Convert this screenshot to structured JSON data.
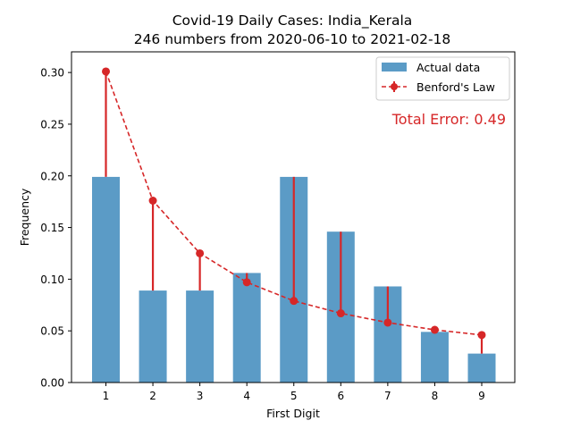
{
  "chart_data": {
    "type": "bar",
    "title": "Covid-19 Daily Cases: India_Kerala",
    "subtitle": "246 numbers from 2020-06-10 to 2021-02-18",
    "xlabel": "First Digit",
    "ylabel": "Frequency",
    "categories": [
      "1",
      "2",
      "3",
      "4",
      "5",
      "6",
      "7",
      "8",
      "9"
    ],
    "ylim": [
      0,
      0.32
    ],
    "yticks": [
      "0.00",
      "0.05",
      "0.10",
      "0.15",
      "0.20",
      "0.25",
      "0.30"
    ],
    "grid": false,
    "legend_position": "top-right",
    "series": [
      {
        "name": "Actual data",
        "type": "bar",
        "color": "#5b9bc6",
        "values": [
          0.199,
          0.089,
          0.089,
          0.106,
          0.199,
          0.146,
          0.093,
          0.049,
          0.028
        ]
      },
      {
        "name": "Benford's Law",
        "type": "line",
        "style": "dashed",
        "color": "#d62728",
        "values": [
          0.301,
          0.176,
          0.125,
          0.097,
          0.079,
          0.067,
          0.058,
          0.051,
          0.046
        ]
      }
    ],
    "annotation": "Total Error: 0.49",
    "annotation_color": "#d62728"
  }
}
